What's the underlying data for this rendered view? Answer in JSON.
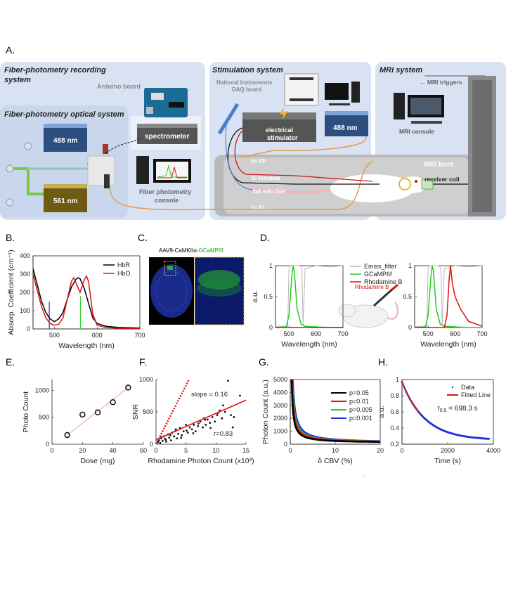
{
  "panel_labels": {
    "a": "A.",
    "b": "B.",
    "c": "C.",
    "d": "D.",
    "e": "E.",
    "f": "F.",
    "g": "G.",
    "h": "H."
  },
  "schematic": {
    "recording_title_1": "Fiber-photometry recording",
    "recording_title_2": "system",
    "optical_title": "Fiber-photometry optical system",
    "stim_title": "Stimulation system",
    "mri_title": "MRI system",
    "arduino": "Arduino board",
    "ni_1": "National Instruments",
    "ni_2": "DAQ board",
    "mri_triggers": "← MRI triggers",
    "laser_488": "488 nm",
    "laser_561": "561 nm",
    "laser_488_stim": "488 nm",
    "spectrometer": "spectrometer",
    "stim_1": "electrical",
    "stim_2": "stimulator",
    "console_1": "Fiber photometry",
    "console_2": "console",
    "mri_console": "MRI console",
    "mri_bore": "MRI bore",
    "receiver": "receiver coil",
    "to_vp": "to VP",
    "to_forepaw": "to forepaw",
    "tail_vein": "Tail vein line",
    "to_s1": "to S1"
  },
  "panel_c": {
    "title_prefix": "AAV9-CaMKIIα-",
    "title_green": "GCaMP6f"
  },
  "panel_d": {
    "rhodamine_label": "Rhodamine B"
  },
  "colors": {
    "green_laser": "#2d4f80",
    "yellow_laser": "#6e5a10",
    "panel_bg": "#d8e2f2"
  },
  "chart_data": [
    {
      "id": "B",
      "type": "line",
      "xlabel": "Wavelength (nm)",
      "ylabel": "Absorp. Coefficient (cm⁻¹)",
      "xlim": [
        450,
        700
      ],
      "ylim": [
        0,
        400
      ],
      "xticks": [
        "500",
        "600",
        "700"
      ],
      "yticks": [
        "0",
        "100",
        "200",
        "300",
        "400"
      ],
      "series": [
        {
          "name": "HbR",
          "color": "#000000",
          "x": [
            450,
            460,
            470,
            480,
            490,
            500,
            510,
            520,
            530,
            540,
            550,
            555,
            560,
            570,
            580,
            590,
            600,
            620,
            650,
            700
          ],
          "y": [
            330,
            240,
            150,
            90,
            55,
            40,
            55,
            90,
            160,
            230,
            270,
            280,
            275,
            220,
            140,
            60,
            30,
            15,
            8,
            5
          ]
        },
        {
          "name": "HbO",
          "color": "#e01010",
          "x": [
            450,
            460,
            470,
            480,
            490,
            500,
            510,
            520,
            530,
            540,
            545,
            550,
            560,
            570,
            575,
            580,
            590,
            600,
            620,
            650,
            700
          ],
          "y": [
            300,
            210,
            120,
            60,
            30,
            20,
            25,
            60,
            160,
            260,
            280,
            255,
            200,
            270,
            290,
            260,
            80,
            20,
            8,
            4,
            2
          ]
        }
      ],
      "vlines": [
        {
          "x": 488,
          "color": "#3333cc"
        },
        {
          "x": 561,
          "color": "#33cc33"
        }
      ]
    },
    {
      "id": "D1",
      "type": "line",
      "ylabel": "a.u.",
      "xlabel": "Wavelength (nm)",
      "xlim": [
        450,
        700
      ],
      "ylim": [
        0,
        1
      ],
      "xticks": [
        "500",
        "600",
        "700"
      ],
      "yticks": [
        "0",
        "0.5",
        "1"
      ],
      "series": [
        {
          "name": "Emiss_filter",
          "color": "#b8b8b8",
          "x": [
            450,
            495,
            500,
            505,
            540,
            548,
            552,
            560,
            600,
            650,
            700
          ],
          "y": [
            0.02,
            0.02,
            0.95,
            1,
            1,
            0.95,
            0.03,
            0.95,
            1,
            0.98,
            1
          ]
        },
        {
          "name": "GCaMP6f",
          "color": "#22cc22",
          "x": [
            450,
            490,
            500,
            510,
            515,
            520,
            530,
            545,
            560,
            600,
            650,
            700
          ],
          "y": [
            0,
            0.01,
            0.2,
            0.8,
            1,
            0.9,
            0.3,
            0.05,
            0.02,
            0.01,
            0,
            0
          ]
        },
        {
          "name": "Rhodamine B",
          "color": "#e01010",
          "x": [
            450,
            700
          ],
          "y": [
            0,
            0
          ]
        }
      ]
    },
    {
      "id": "D2",
      "type": "line",
      "xlabel": "Wavelength (nm)",
      "xlim": [
        450,
        700
      ],
      "ylim": [
        0,
        1
      ],
      "xticks": [
        "500",
        "600",
        "700"
      ],
      "yticks": [
        "0",
        "0.5",
        "1"
      ],
      "series": [
        {
          "name": "Emiss_filter",
          "color": "#b8b8b8",
          "x": [
            450,
            495,
            500,
            505,
            540,
            548,
            552,
            560,
            600,
            650,
            700
          ],
          "y": [
            0.02,
            0.02,
            0.95,
            1,
            1,
            0.95,
            0.03,
            0.95,
            1,
            0.98,
            1
          ]
        },
        {
          "name": "GCaMP6f",
          "color": "#22cc22",
          "x": [
            450,
            490,
            500,
            510,
            515,
            520,
            530,
            545,
            560,
            600,
            650,
            700
          ],
          "y": [
            0,
            0.01,
            0.2,
            0.8,
            1,
            0.9,
            0.3,
            0.05,
            0.02,
            0.01,
            0,
            0
          ]
        },
        {
          "name": "Rhodamine B",
          "color": "#e01010",
          "x": [
            450,
            560,
            570,
            578,
            583,
            590,
            600,
            620,
            650,
            700
          ],
          "y": [
            0,
            0,
            0.2,
            0.8,
            1,
            0.7,
            0.5,
            0.3,
            0.1,
            0.02
          ]
        }
      ]
    },
    {
      "id": "E",
      "type": "scatter",
      "xlabel": "Dose (mg)",
      "ylabel": "Photo Count",
      "xlim": [
        0,
        60
      ],
      "ylim": [
        0,
        1200
      ],
      "xticks": [
        "0",
        "20",
        "40",
        "60"
      ],
      "yticks": [
        "0",
        "500",
        "1000"
      ],
      "x": [
        10,
        20,
        30,
        40,
        50
      ],
      "y": [
        170,
        550,
        590,
        780,
        1050
      ],
      "fit": {
        "x": [
          10,
          50
        ],
        "y": [
          170,
          1050
        ]
      }
    },
    {
      "id": "F",
      "type": "scatter",
      "xlabel": "Rhodamine Photon Count (x10³)",
      "ylabel": "SNR",
      "xlim": [
        0,
        15
      ],
      "ylim": [
        0,
        1000
      ],
      "xticks": [
        "0",
        "5",
        "10",
        "15"
      ],
      "yticks": [
        "0",
        "500",
        "1000"
      ],
      "annotations": {
        "slope": "slope = 0.16",
        "r": "r=0.83"
      },
      "fit": {
        "x": [
          0,
          15
        ],
        "y": [
          70,
          680
        ]
      },
      "dotted": {
        "x": [
          0,
          5.5
        ],
        "y": [
          0,
          1000
        ]
      },
      "x": [
        0.3,
        0.5,
        0.7,
        0.9,
        1.1,
        1.3,
        1.5,
        1.7,
        2.0,
        2.2,
        2.5,
        2.7,
        3.0,
        3.2,
        3.5,
        3.7,
        4.0,
        4.3,
        4.6,
        5.0,
        5.3,
        5.6,
        6.0,
        6.3,
        6.6,
        7.0,
        7.4,
        7.8,
        8.0,
        8.3,
        8.6,
        9.0,
        9.4,
        9.8,
        10.2,
        10.6,
        11.0,
        11.5,
        12.0,
        12.5,
        13.0,
        14.0,
        0.8,
        1.6,
        2.4,
        3.3,
        4.2,
        5.1,
        6.2,
        7.1,
        8.2,
        9.1,
        10.3,
        11.2,
        12.8
      ],
      "y": [
        30,
        60,
        20,
        90,
        50,
        120,
        80,
        40,
        150,
        100,
        60,
        180,
        120,
        200,
        90,
        160,
        250,
        140,
        200,
        300,
        180,
        260,
        230,
        300,
        200,
        280,
        350,
        260,
        400,
        300,
        380,
        330,
        420,
        350,
        450,
        520,
        400,
        500,
        980,
        450,
        420,
        750,
        110,
        70,
        140,
        230,
        100,
        210,
        170,
        320,
        380,
        250,
        480,
        600,
        260
      ]
    },
    {
      "id": "G",
      "type": "line",
      "xlabel": "δ CBV (%)",
      "ylabel": "Photon Count (a.u.)",
      "xlim": [
        0,
        20
      ],
      "ylim": [
        0,
        5000
      ],
      "xticks": [
        "0",
        "10",
        "20"
      ],
      "yticks": [
        "0",
        "1000",
        "2000",
        "3000",
        "4000",
        "5000"
      ],
      "series": [
        {
          "name": "p=0.05",
          "color": "#000000",
          "k": 1500
        },
        {
          "name": "p=0.01",
          "color": "#e01010",
          "k": 1900
        },
        {
          "name": "p=0.005",
          "color": "#22cc22",
          "k": 2200
        },
        {
          "name": "p=0.001",
          "color": "#2233dd",
          "k": 2700
        }
      ]
    },
    {
      "id": "H",
      "type": "line",
      "xlabel": "Time (s)",
      "ylabel": "a.u.",
      "xlim": [
        0,
        4000
      ],
      "ylim": [
        0.2,
        1.0
      ],
      "xticks": [
        "0",
        "2000",
        "4000"
      ],
      "yticks": [
        "0.2",
        "0.4",
        "0.6",
        "0.8",
        "1"
      ],
      "series": [
        {
          "name": "Data",
          "color": "#2233dd"
        },
        {
          "name": "Fitted Line",
          "color": "#e01010"
        }
      ],
      "model": {
        "plateau": 0.25,
        "amplitude": 0.72,
        "half_life": 698.3
      },
      "annotation": "τ₀.₅ = 698.3 s",
      "annotation_tau": "τ",
      "annotation_sub": "0.5",
      "annotation_rest": " = 698.3 s"
    }
  ]
}
